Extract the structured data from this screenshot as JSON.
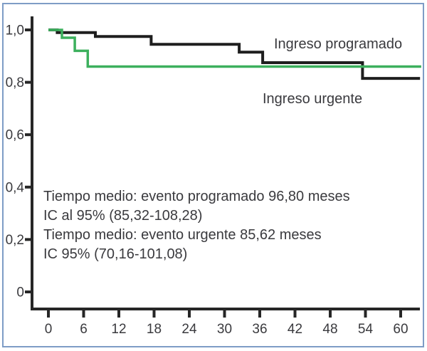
{
  "figure": {
    "background": "#ffffff",
    "border_color": "#7e9cc6",
    "axis_color": "#262626",
    "text_color": "#3a3a3e"
  },
  "chart_data": {
    "type": "line",
    "variant": "kaplan-meier-step",
    "title": "",
    "xlabel": "",
    "ylabel": "",
    "xlim": [
      -3,
      63.5
    ],
    "ylim": [
      -0.06,
      1.06
    ],
    "grid": false,
    "legend_position": "inline-labels",
    "x_ticks": [
      {
        "label": "0",
        "value": 0
      },
      {
        "label": "6",
        "value": 6
      },
      {
        "label": "12",
        "value": 12
      },
      {
        "label": "18",
        "value": 18
      },
      {
        "label": "24",
        "value": 24
      },
      {
        "label": "30",
        "value": 30
      },
      {
        "label": "36",
        "value": 36
      },
      {
        "label": "42",
        "value": 42
      },
      {
        "label": "48",
        "value": 48
      },
      {
        "label": "54",
        "value": 54
      },
      {
        "label": "60",
        "value": 60
      }
    ],
    "y_ticks": [
      {
        "label": "1,0",
        "value": 1.0
      },
      {
        "label": "0,8",
        "value": 0.8
      },
      {
        "label": "0,6",
        "value": 0.6
      },
      {
        "label": "0,4",
        "value": 0.4
      },
      {
        "label": "0,2",
        "value": 0.2
      },
      {
        "label": "0",
        "value": 0.0
      }
    ],
    "series": [
      {
        "name": "Ingreso programado",
        "color": "#1e1e1e",
        "stroke_width": 4,
        "points": [
          [
            0,
            1.0
          ],
          [
            1.5,
            1.0
          ],
          [
            1.5,
            0.99
          ],
          [
            8,
            0.99
          ],
          [
            8,
            0.975
          ],
          [
            17.5,
            0.975
          ],
          [
            17.5,
            0.945
          ],
          [
            32.5,
            0.945
          ],
          [
            32.5,
            0.915
          ],
          [
            36.5,
            0.915
          ],
          [
            36.5,
            0.875
          ],
          [
            53.5,
            0.875
          ],
          [
            53.5,
            0.815
          ],
          [
            63.3,
            0.815
          ]
        ]
      },
      {
        "name": "Ingreso urgente",
        "color": "#3cb05d",
        "stroke_width": 3.5,
        "points": [
          [
            0,
            1.0
          ],
          [
            2.3,
            1.0
          ],
          [
            2.3,
            0.97
          ],
          [
            4.5,
            0.97
          ],
          [
            4.5,
            0.92
          ],
          [
            6.7,
            0.92
          ],
          [
            6.7,
            0.86
          ],
          [
            63.5,
            0.86
          ]
        ]
      }
    ],
    "annotations": [
      "Tiempo medio: evento programado 96,80 meses",
      "IC al 95% (85,32-108,28)",
      "Tiempo medio: evento urgente 85,62 meses",
      "IC 95% (70,16-101,08)"
    ]
  }
}
